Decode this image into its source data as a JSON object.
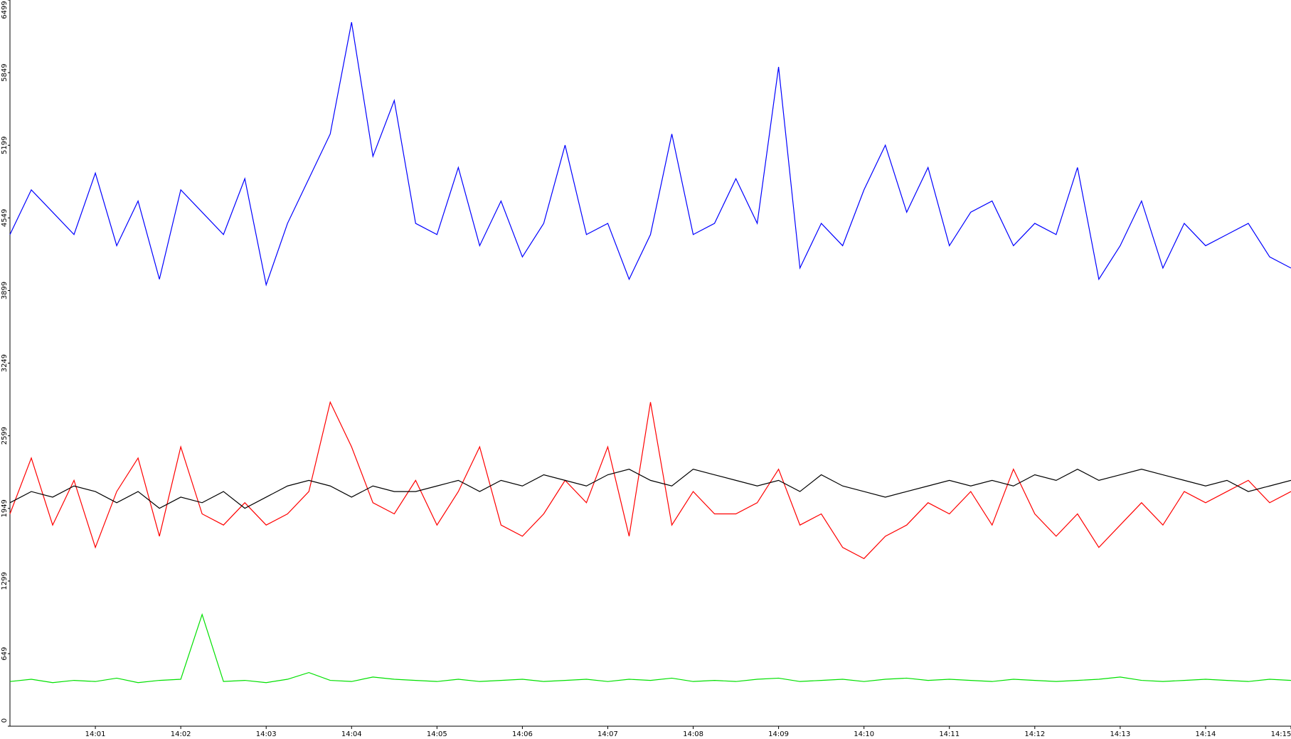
{
  "chart_data": {
    "type": "line",
    "x": [
      840,
      840.25,
      840.5,
      840.75,
      841,
      841.25,
      841.5,
      841.75,
      842,
      842.25,
      842.5,
      842.75,
      843,
      843.25,
      843.5,
      843.75,
      844,
      844.25,
      844.5,
      844.75,
      845,
      845.25,
      845.5,
      845.75,
      846,
      846.25,
      846.5,
      846.75,
      847,
      847.25,
      847.5,
      847.75,
      848,
      848.25,
      848.5,
      848.75,
      849,
      849.25,
      849.5,
      849.75,
      850,
      850.25,
      850.5,
      850.75,
      851,
      851.25,
      851.5,
      851.75,
      852,
      852.25,
      852.5,
      852.75,
      853,
      853.25,
      853.5,
      853.75,
      854,
      854.25,
      854.5,
      854.75,
      855
    ],
    "series": [
      {
        "color": "#0000ff",
        "values": [
          4400,
          4800,
          4600,
          4400,
          4950,
          4300,
          4700,
          4000,
          4800,
          4600,
          4400,
          4900,
          3950,
          4500,
          4900,
          5300,
          6300,
          5100,
          5600,
          4500,
          4400,
          5000,
          4300,
          4700,
          4200,
          4500,
          5200,
          4400,
          4500,
          4000,
          4400,
          5300,
          4400,
          4500,
          4900,
          4500,
          5900,
          4100,
          4500,
          4300,
          4800,
          5200,
          4600,
          5000,
          4300,
          4600,
          4700,
          4300,
          4500,
          4400,
          5000,
          4000,
          4300,
          4700,
          4100,
          4500,
          4300,
          4400,
          4500,
          4200,
          4100
        ]
      },
      {
        "color": "#ff0000",
        "values": [
          1900,
          2400,
          1800,
          2200,
          1600,
          2100,
          2400,
          1700,
          2500,
          1900,
          1800,
          2000,
          1800,
          1900,
          2100,
          2900,
          2500,
          2000,
          1900,
          2200,
          1800,
          2100,
          2500,
          1800,
          1700,
          1900,
          2200,
          2000,
          2500,
          1700,
          2900,
          1800,
          2100,
          1900,
          1900,
          2000,
          2300,
          1800,
          1900,
          1600,
          1500,
          1700,
          1800,
          2000,
          1900,
          2100,
          1800,
          2300,
          1900,
          1700,
          1900,
          1600,
          1800,
          2000,
          1800,
          2100,
          2000,
          2100,
          2200,
          2000,
          2100
        ]
      },
      {
        "color": "#000000",
        "values": [
          2000,
          2100,
          2050,
          2150,
          2100,
          2000,
          2100,
          1950,
          2050,
          2000,
          2100,
          1950,
          2050,
          2150,
          2200,
          2150,
          2050,
          2150,
          2100,
          2100,
          2150,
          2200,
          2100,
          2200,
          2150,
          2250,
          2200,
          2150,
          2250,
          2300,
          2200,
          2150,
          2300,
          2250,
          2200,
          2150,
          2200,
          2100,
          2250,
          2150,
          2100,
          2050,
          2100,
          2150,
          2200,
          2150,
          2200,
          2150,
          2250,
          2200,
          2300,
          2200,
          2250,
          2300,
          2250,
          2200,
          2150,
          2200,
          2100,
          2150,
          2200
        ]
      },
      {
        "color": "#00e000",
        "values": [
          400,
          420,
          390,
          410,
          400,
          430,
          390,
          410,
          420,
          1000,
          400,
          410,
          390,
          420,
          480,
          410,
          400,
          440,
          420,
          410,
          400,
          420,
          400,
          410,
          420,
          400,
          410,
          420,
          400,
          420,
          410,
          430,
          400,
          410,
          400,
          420,
          430,
          400,
          410,
          420,
          400,
          420,
          430,
          410,
          420,
          410,
          400,
          420,
          410,
          400,
          410,
          420,
          440,
          410,
          400,
          410,
          420,
          410,
          400,
          420,
          410
        ]
      }
    ],
    "xlim": [
      840,
      855
    ],
    "xticks": [
      {
        "value": 841,
        "label": "14:01"
      },
      {
        "value": 842,
        "label": "14:02"
      },
      {
        "value": 843,
        "label": "14:03"
      },
      {
        "value": 844,
        "label": "14:04"
      },
      {
        "value": 845,
        "label": "14:05"
      },
      {
        "value": 846,
        "label": "14:06"
      },
      {
        "value": 847,
        "label": "14:07"
      },
      {
        "value": 848,
        "label": "14:08"
      },
      {
        "value": 849,
        "label": "14:09"
      },
      {
        "value": 850,
        "label": "14:10"
      },
      {
        "value": 851,
        "label": "14:11"
      },
      {
        "value": 852,
        "label": "14:12"
      },
      {
        "value": 853,
        "label": "14:13"
      },
      {
        "value": 854,
        "label": "14:14"
      },
      {
        "value": 855,
        "label": "14:15"
      }
    ],
    "ylim": [
      0,
      6499
    ],
    "yticks": [
      0,
      649,
      1299,
      1949,
      2599,
      3249,
      3899,
      4549,
      5199,
      5849,
      6499
    ]
  }
}
